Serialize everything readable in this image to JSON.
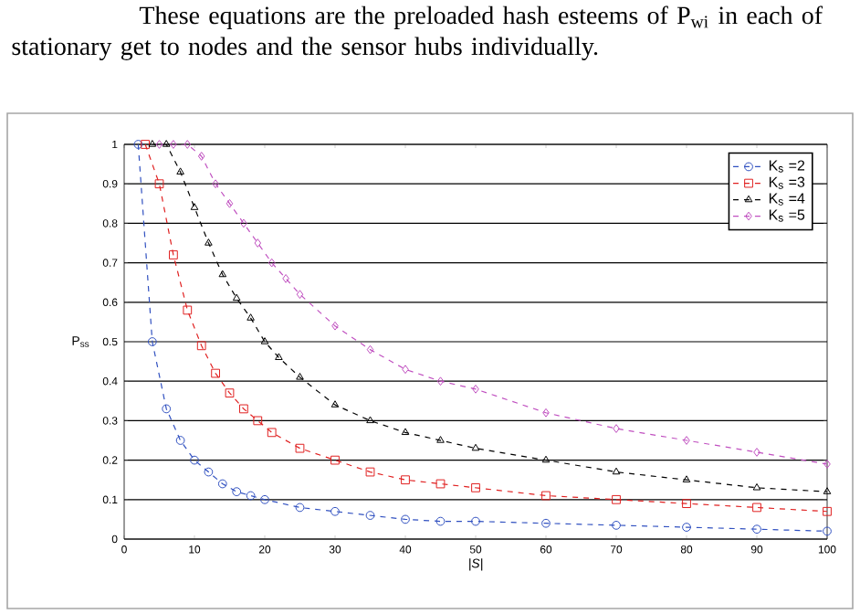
{
  "chart_data": {
    "type": "line",
    "annotations": [
      "These equations are the preloaded hash esteems of P$_{wi}$ in each of stationary get to nodes and the sensor hubs individually."
    ],
    "xlabel": "|S|",
    "ylabel": "P$_{ss}$",
    "xlim": [
      0,
      100
    ],
    "ylim": [
      0,
      1
    ],
    "xticks": [
      0,
      10,
      20,
      30,
      40,
      50,
      60,
      70,
      80,
      90,
      100
    ],
    "yticks": [
      0,
      0.1,
      0.2,
      0.3,
      0.4,
      0.5,
      0.6,
      0.7,
      0.8,
      0.9,
      1
    ],
    "grid": "y",
    "legend": "top right",
    "line_style": "dashed",
    "series": [
      {
        "name": "K$_{s}$ =2",
        "color": "#3050c0",
        "marker": "circle",
        "x": [
          2,
          4,
          6,
          8,
          10,
          12,
          14,
          16,
          18,
          20,
          25,
          30,
          35,
          40,
          45,
          50,
          60,
          70,
          80,
          90,
          100
        ],
        "values": [
          1,
          0.5,
          0.33,
          0.25,
          0.2,
          0.17,
          0.14,
          0.12,
          0.11,
          0.1,
          0.08,
          0.07,
          0.06,
          0.05,
          0.045,
          0.045,
          0.04,
          0.035,
          0.03,
          0.025,
          0.02
        ]
      },
      {
        "name": "K$_{s}$ =3",
        "color": "#e02020",
        "marker": "square",
        "x": [
          3,
          5,
          7,
          9,
          11,
          13,
          15,
          17,
          19,
          21,
          25,
          30,
          35,
          40,
          45,
          50,
          60,
          70,
          80,
          90,
          100
        ],
        "values": [
          1,
          0.9,
          0.72,
          0.58,
          0.49,
          0.42,
          0.37,
          0.33,
          0.3,
          0.27,
          0.23,
          0.2,
          0.17,
          0.15,
          0.14,
          0.13,
          0.11,
          0.1,
          0.09,
          0.08,
          0.07
        ]
      },
      {
        "name": "K$_{s}$ =4",
        "color": "#000000",
        "marker": "triangle",
        "x": [
          4,
          6,
          8,
          10,
          12,
          14,
          16,
          18,
          20,
          22,
          25,
          30,
          35,
          40,
          45,
          50,
          60,
          70,
          80,
          90,
          100
        ],
        "values": [
          1,
          1,
          0.93,
          0.84,
          0.75,
          0.67,
          0.61,
          0.56,
          0.5,
          0.46,
          0.41,
          0.34,
          0.3,
          0.27,
          0.25,
          0.23,
          0.2,
          0.17,
          0.15,
          0.13,
          0.12
        ]
      },
      {
        "name": "K$_{s}$ =5",
        "color": "#c050c0",
        "marker": "diamond",
        "x": [
          5,
          7,
          9,
          11,
          13,
          15,
          17,
          19,
          21,
          23,
          25,
          30,
          35,
          40,
          45,
          50,
          60,
          70,
          80,
          90,
          100
        ],
        "values": [
          1,
          1,
          1,
          0.97,
          0.9,
          0.85,
          0.8,
          0.75,
          0.7,
          0.66,
          0.62,
          0.54,
          0.48,
          0.43,
          0.4,
          0.38,
          0.32,
          0.28,
          0.25,
          0.22,
          0.19
        ]
      }
    ]
  }
}
